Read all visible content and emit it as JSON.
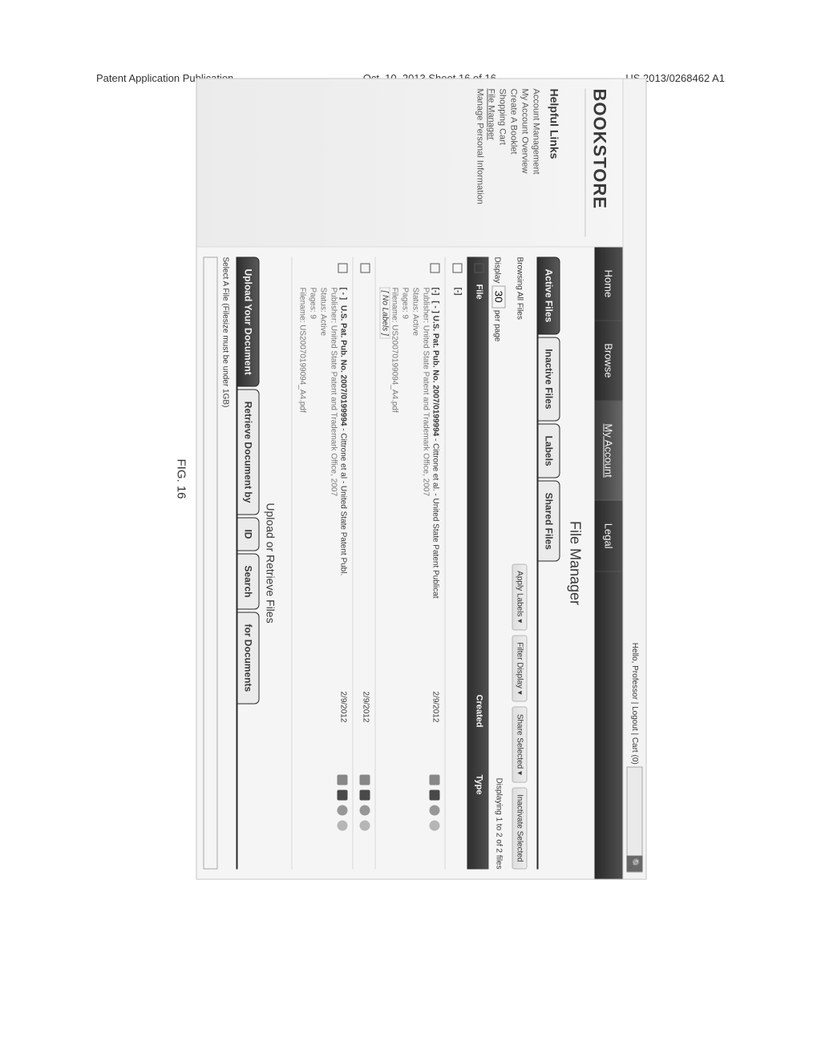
{
  "page_header": {
    "left": "Patent Application Publication",
    "center": "Oct. 10, 2013  Sheet 16 of 16",
    "right": "US 2013/0268462 A1"
  },
  "figure_label": "FIG. 16",
  "topbar": {
    "greeting": "Hello, Professor | Logout | Cart (0)",
    "search_placeholder": ""
  },
  "brand": "BOOKSTORE",
  "sidebar": {
    "title": "Helpful Links",
    "items": [
      {
        "label": "Account Management"
      },
      {
        "label": "My Account Overview"
      },
      {
        "label": "Create A Booklet"
      },
      {
        "label": "Shopping Cart"
      },
      {
        "label": "File Manager",
        "active": true
      },
      {
        "label": "Manage Personal Information"
      }
    ]
  },
  "nav": {
    "items": [
      {
        "label": "Home"
      },
      {
        "label": "Browse"
      },
      {
        "label": "My Account",
        "active": true
      },
      {
        "label": "Legal"
      }
    ]
  },
  "section_title": "File Manager",
  "file_tabs": [
    {
      "label": "Active Files",
      "active": true
    },
    {
      "label": "Inactive Files"
    },
    {
      "label": "Labels"
    },
    {
      "label": "Shared Files"
    }
  ],
  "toolbar": {
    "apply": "Apply Labels ▾",
    "filter": "Filter Display ▾",
    "share": "Share Selected ▾",
    "inactivate": "Inactivate Selected"
  },
  "browsing": {
    "label": "Browsing All Files",
    "display_label": "Display",
    "perpage_value": "30",
    "perpage_suffix": "per page",
    "counter": "Displaying 1 to 2 of 2 files"
  },
  "columns": {
    "file": "File",
    "created": "Created",
    "type": "Type"
  },
  "rows": [
    {
      "collapse": "[-]",
      "title": "[ - ] U.S. Pat. Pub. No. 2007/0199994",
      "subtitle": " - Cittrone et al. - United State Patent Publicat",
      "created": "2/9/2012",
      "meta": [
        "Publisher: United State Patent and Trademark Office, 2007",
        "Status: Active",
        "Pages: 9",
        "Filename: US20070199094_A4.pdf"
      ],
      "badge": "[ No Labels ]"
    },
    {
      "title_only": true,
      "created": "2/9/2012"
    },
    {
      "collapse": "[ - ]",
      "title": "U.S. Pat. Pub. No. 2007/0199994",
      "subtitle": " - Cittrone et al - United State Patent Publ.",
      "created": "2/9/2012",
      "meta": [
        "Publisher: United State Patent and Trademark Office, 2007",
        "Status: Active",
        "Pages: 9",
        "Filename: US20070199094_A4.pdf"
      ]
    }
  ],
  "upload": {
    "title": "Upload or Retrieve Files",
    "tabs": [
      {
        "label": "Upload Your Document",
        "active": true
      },
      {
        "label": "Retrieve Document by"
      },
      {
        "label": "ID"
      },
      {
        "label": "Search"
      },
      {
        "label": "for Documents"
      }
    ],
    "hint": "Select A File (Filesize must be under 1GB)"
  }
}
